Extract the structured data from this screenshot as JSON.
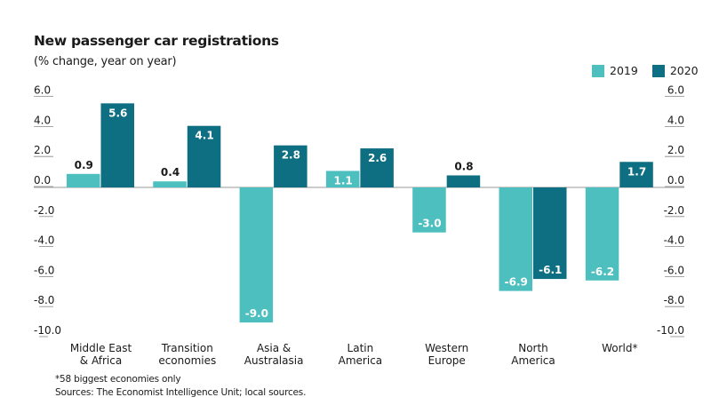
{
  "chart_data": {
    "type": "bar",
    "title": "New passenger car registrations",
    "subtitle": "(% change, year on year)",
    "xlabel": "",
    "ylabel": "",
    "ylim": [
      -10,
      6
    ],
    "yticks": [
      6,
      4,
      2,
      0,
      -2,
      -4,
      -6,
      -8,
      -10
    ],
    "ytick_labels": [
      "6.0",
      "4.0",
      "2.0",
      "0.0",
      "-2.0",
      "-4.0",
      "-6.0",
      "-8.0",
      "-10.0"
    ],
    "y_axis_both_sides": true,
    "grid": false,
    "legend_position": "top-right",
    "categories": [
      [
        "Middle East",
        "& Africa"
      ],
      [
        "Transition",
        "economies"
      ],
      [
        "Asia &",
        "Australasia"
      ],
      [
        "Latin",
        "America"
      ],
      [
        "Western",
        "Europe"
      ],
      [
        "North",
        "America"
      ],
      [
        "World*"
      ]
    ],
    "series": [
      {
        "name": "2019",
        "color": "#4dbfbf",
        "values": [
          0.9,
          0.4,
          -9.0,
          1.1,
          -3.0,
          -6.9,
          -6.2
        ],
        "labels": [
          "0.9",
          "0.4",
          "-9.0",
          "1.1",
          "-3.0",
          "-6.9",
          "-6.2"
        ]
      },
      {
        "name": "2020",
        "color": "#0e6e82",
        "values": [
          5.6,
          4.1,
          2.8,
          2.6,
          0.8,
          -6.1,
          1.7
        ],
        "labels": [
          "5.6",
          "4.1",
          "2.8",
          "2.6",
          "0.8",
          "-6.1",
          "1.7"
        ]
      }
    ],
    "footnote": "*58 biggest economies only",
    "sources": "Sources: The Economist Intelligence Unit; local sources."
  }
}
